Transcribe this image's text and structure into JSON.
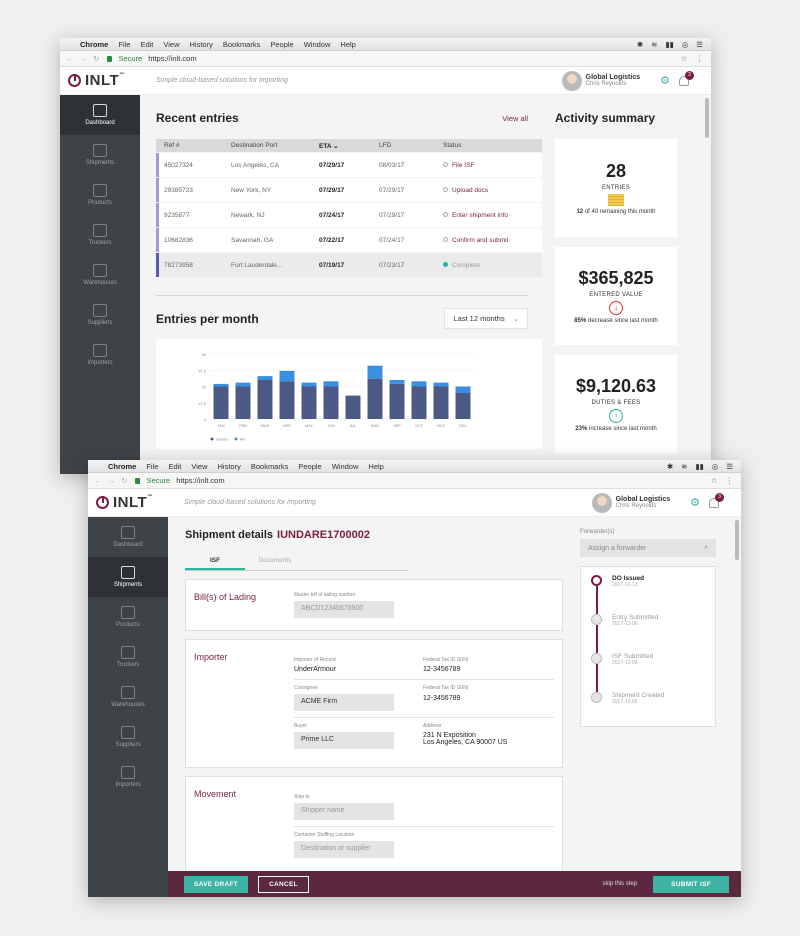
{
  "os": {
    "apple": "",
    "app": "Chrome",
    "menus": [
      "File",
      "Edit",
      "View",
      "History",
      "Bookmarks",
      "People",
      "Window",
      "Help"
    ],
    "status_icons": [
      "✱",
      "≋",
      "▮▮",
      "◎",
      "☰"
    ]
  },
  "browser": {
    "nav": "← → ↻",
    "secure": "Secure",
    "url": "https://inlt.com",
    "star": "☆",
    "more": "⋮"
  },
  "header": {
    "logo": "INLT",
    "tm": "™",
    "tagline": "Simple cloud-based solutions for importing",
    "company": "Global Logistics",
    "user": "Chris Reynolds",
    "notifications": "3"
  },
  "sidebar": [
    {
      "label": "Dashboard"
    },
    {
      "label": "Shipments"
    },
    {
      "label": "Products"
    },
    {
      "label": "Truckers"
    },
    {
      "label": "Warehouses"
    },
    {
      "label": "Suppliers"
    },
    {
      "label": "Importers"
    }
  ],
  "dashboard": {
    "recent_title": "Recent entries",
    "view_all": "View all",
    "columns": [
      "Ref #",
      "Destination Port",
      "ETA ⌄",
      "LFD",
      "Status"
    ],
    "rows": [
      {
        "ref": "45027324",
        "port": "Los Angeles, CA",
        "eta": "07/29/17",
        "lfd": "08/03/17",
        "status": "File ISF"
      },
      {
        "ref": "29385723",
        "port": "New York, NY",
        "eta": "07/29/17",
        "lfd": "07/29/17",
        "status": "Upload docs"
      },
      {
        "ref": "9235877",
        "port": "Newark, NJ",
        "eta": "07/24/17",
        "lfd": "07/29/17",
        "status": "Enter shipment info"
      },
      {
        "ref": "10682836",
        "port": "Savannah, GA",
        "eta": "07/22/17",
        "lfd": "07/24/17",
        "status": "Confirm and submit"
      },
      {
        "ref": "78273958",
        "port": "Fort Lauderdale...",
        "eta": "07/19/17",
        "lfd": "07/23/17",
        "status": "Complete"
      }
    ],
    "entries_title": "Entries per month",
    "period": "Last 12 months",
    "period_chev": "⌄",
    "activity_title": "Activity summary",
    "cards": [
      {
        "value": "28",
        "caption": "ENTRIES",
        "note_bold": "12",
        "note": "of 40 remaining this month"
      },
      {
        "value": "$365,825",
        "caption": "ENTERED VALUE",
        "note_bold": "85%",
        "note": "decrease since last month",
        "arrow": "↓"
      },
      {
        "value": "$9,120.63",
        "caption": "DUTIES & FEES",
        "note_bold": "23%",
        "note": "increase since last month",
        "arrow": "↑"
      }
    ]
  },
  "chart_data": {
    "type": "bar",
    "categories": [
      "JAN",
      "FEB",
      "MAR",
      "APR",
      "MAY",
      "JUN",
      "JUL",
      "AUG",
      "SEP",
      "OCT",
      "NOV",
      "DEC"
    ],
    "series": [
      {
        "name": "Ocean",
        "color": "#4a5a85",
        "values": [
          25,
          25,
          30,
          29,
          25,
          25,
          18,
          31,
          27,
          25,
          25,
          20
        ]
      },
      {
        "name": "Air",
        "color": "#3b8fe0",
        "values": [
          2,
          3,
          3,
          8,
          3,
          4,
          0,
          10,
          3,
          4,
          3,
          5
        ]
      }
    ],
    "yticks": [
      "0",
      "12.5",
      "25",
      "37.5",
      "50"
    ],
    "ylim": [
      0,
      50
    ]
  },
  "shipment": {
    "title": "Shipment details",
    "id": "IUNDARE1700002",
    "tabs": [
      "ISF",
      "Documents"
    ],
    "bol": {
      "title": "Bill(s) of Lading",
      "label": "Master bill of lading number",
      "value": "ABCD12345678900"
    },
    "importer": {
      "title": "Importer",
      "ior_label": "Importer of Record",
      "ior": "UnderArmour",
      "ein_label": "Federal Tax ID (EIN)",
      "ein": "12-3456789",
      "consignee_label": "Consignee",
      "consignee": "ACME Firm",
      "ein2_label": "Federal Tax ID (EIN)",
      "ein2": "12-3456789",
      "buyer_label": "Buyer",
      "buyer": "Prime LLC",
      "address_label": "Address",
      "address1": "231 N Exposition",
      "address2": "Los Angeles, CA 90007 US"
    },
    "movement": {
      "title": "Movement",
      "shipto_label": "Ship to",
      "shipto_ph": "Shipper name",
      "stuffing_label": "Container Stuffing Location",
      "stuffing_ph": "Destination or supplier"
    },
    "forwarder_label": "Forwarder(s)",
    "forwarder_ph": "Assign a forwarder",
    "timeline": [
      {
        "title": "DO Issued",
        "date": "2017-12-13"
      },
      {
        "title": "Entry Submitted",
        "date": "2017-12-06"
      },
      {
        "title": "ISF Submitted",
        "date": "2017-12-06"
      },
      {
        "title": "Shipment Created",
        "date": "2017-12-05"
      }
    ],
    "actions": {
      "save": "SAVE DRAFT",
      "cancel": "CANCEL",
      "skip": "skip this step",
      "submit": "SUBMIT ISF"
    }
  }
}
